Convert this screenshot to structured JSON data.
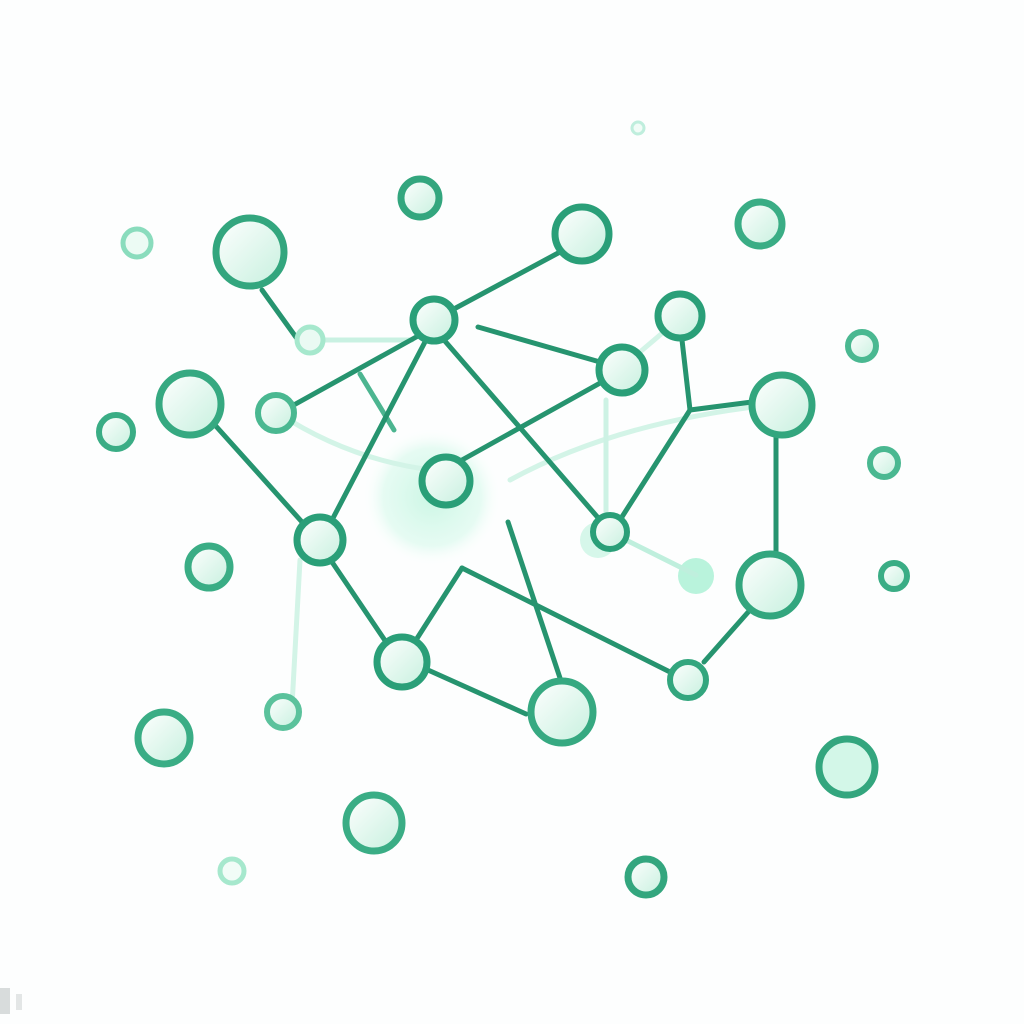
{
  "diagram": {
    "type": "network-graph",
    "colors": {
      "background": "#fdfefe",
      "edge": "#1e9170",
      "edge_faint": "#bff0de",
      "node_stroke": "#2fa57c",
      "node_fill": "#e6f6ef",
      "glow": "#d9f9ec",
      "accent_fill": "#7fe9c1"
    },
    "labels": []
  }
}
